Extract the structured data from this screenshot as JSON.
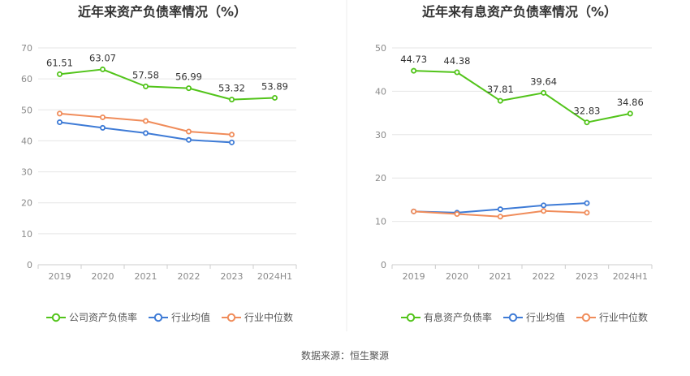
{
  "source": "数据来源：恒生聚源",
  "colors": {
    "main": "#52c41a",
    "avg": "#3e7bd6",
    "median": "#f08c5a",
    "grid": "#e6e6e6",
    "axis": "#cccccc"
  },
  "chart_data": [
    {
      "type": "line",
      "title": "近年来资产负债率情况（%）",
      "categories": [
        "2019",
        "2020",
        "2021",
        "2022",
        "2023",
        "2024H1"
      ],
      "ylim": [
        0,
        70
      ],
      "yticks": [
        0,
        10,
        20,
        30,
        40,
        50,
        60,
        70
      ],
      "grid": true,
      "legend": "bottom",
      "series": [
        {
          "name": "公司资产负债率",
          "color": "#52c41a",
          "labeled": true,
          "values": [
            61.51,
            63.07,
            57.58,
            56.99,
            53.32,
            53.89
          ],
          "labels": [
            "61.51",
            "63.07",
            "57.58",
            "56.99",
            "53.32",
            "53.89"
          ]
        },
        {
          "name": "行业均值",
          "color": "#3e7bd6",
          "labeled": false,
          "values": [
            46.0,
            44.2,
            42.5,
            40.3,
            39.5,
            null
          ]
        },
        {
          "name": "行业中位数",
          "color": "#f08c5a",
          "labeled": false,
          "values": [
            48.8,
            47.6,
            46.4,
            43.0,
            42.0,
            null
          ]
        }
      ]
    },
    {
      "type": "line",
      "title": "近年来有息资产负债率情况（%）",
      "categories": [
        "2019",
        "2020",
        "2021",
        "2022",
        "2023",
        "2024H1"
      ],
      "ylim": [
        0,
        50
      ],
      "yticks": [
        0,
        10,
        20,
        30,
        40,
        50
      ],
      "grid": true,
      "legend": "bottom",
      "series": [
        {
          "name": "有息资产负债率",
          "color": "#52c41a",
          "labeled": true,
          "values": [
            44.73,
            44.38,
            37.81,
            39.64,
            32.83,
            34.86
          ],
          "labels": [
            "44.73",
            "44.38",
            "37.81",
            "39.64",
            "32.83",
            "34.86"
          ]
        },
        {
          "name": "行业均值",
          "color": "#3e7bd6",
          "labeled": false,
          "values": [
            12.3,
            12.0,
            12.8,
            13.7,
            14.2,
            null
          ]
        },
        {
          "name": "行业中位数",
          "color": "#f08c5a",
          "labeled": false,
          "values": [
            12.3,
            11.7,
            11.1,
            12.4,
            12.0,
            null
          ]
        }
      ]
    }
  ]
}
